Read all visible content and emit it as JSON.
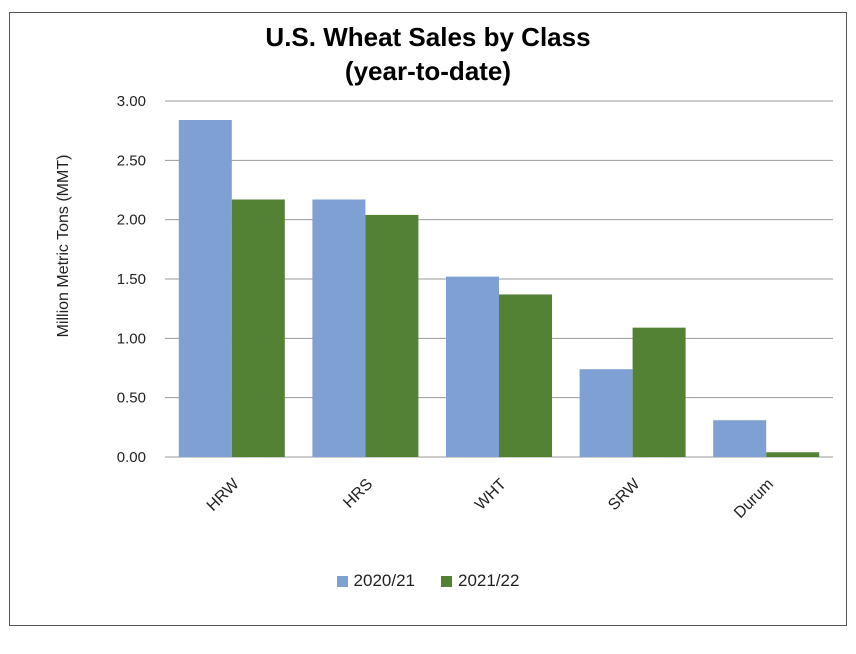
{
  "chart_data": {
    "type": "bar",
    "title": "U.S. Wheat Sales by Class",
    "subtitle": "(year-to-date)",
    "ylabel": "Million Metric Tons (MMT)",
    "xlabel": "",
    "categories": [
      "HRW",
      "HRS",
      "WHT",
      "SRW",
      "Durum"
    ],
    "ylim": [
      0,
      3
    ],
    "yticks": [
      "0.00",
      "0.50",
      "1.00",
      "1.50",
      "2.00",
      "2.50",
      "3.00"
    ],
    "series": [
      {
        "name": "2020/21",
        "color": "#7FA0D3",
        "values": [
          2.84,
          2.17,
          1.52,
          0.74,
          0.31
        ]
      },
      {
        "name": "2021/22",
        "color": "#548235",
        "values": [
          2.17,
          2.04,
          1.37,
          1.09,
          0.04
        ]
      }
    ],
    "grid": true,
    "legend_position": "bottom"
  }
}
